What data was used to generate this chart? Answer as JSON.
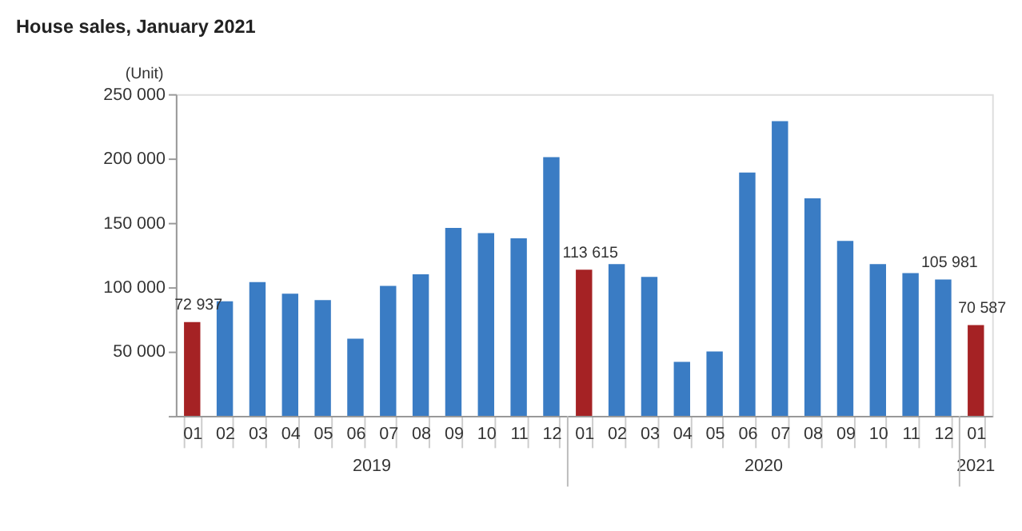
{
  "chart_data": {
    "type": "bar",
    "title": "House sales, January 2021",
    "ylabel": "(Unit)",
    "categories": [
      "01",
      "02",
      "03",
      "04",
      "05",
      "06",
      "07",
      "08",
      "09",
      "10",
      "11",
      "12",
      "01",
      "02",
      "03",
      "04",
      "05",
      "06",
      "07",
      "08",
      "09",
      "10",
      "11",
      "12",
      "01"
    ],
    "values": [
      72937,
      89000,
      104000,
      95000,
      90000,
      60000,
      101000,
      110000,
      146000,
      142000,
      138000,
      201000,
      113615,
      118000,
      108000,
      42000,
      50000,
      189000,
      229000,
      169000,
      136000,
      118000,
      111000,
      105981,
      70587
    ],
    "colors": [
      "#a52224",
      "#3a7cc4",
      "#3a7cc4",
      "#3a7cc4",
      "#3a7cc4",
      "#3a7cc4",
      "#3a7cc4",
      "#3a7cc4",
      "#3a7cc4",
      "#3a7cc4",
      "#3a7cc4",
      "#3a7cc4",
      "#a52224",
      "#3a7cc4",
      "#3a7cc4",
      "#3a7cc4",
      "#3a7cc4",
      "#3a7cc4",
      "#3a7cc4",
      "#3a7cc4",
      "#3a7cc4",
      "#3a7cc4",
      "#3a7cc4",
      "#3a7cc4",
      "#a52224"
    ],
    "value_labels": [
      "72 937",
      null,
      null,
      null,
      null,
      null,
      null,
      null,
      null,
      null,
      null,
      null,
      "113 615",
      null,
      null,
      null,
      null,
      null,
      null,
      null,
      null,
      null,
      null,
      "105 981",
      "70 587"
    ],
    "ylim": [
      0,
      250000
    ],
    "yticks": [
      {
        "value": 0,
        "label": null
      },
      {
        "value": 50000,
        "label": "50 000"
      },
      {
        "value": 100000,
        "label": "100 000"
      },
      {
        "value": 150000,
        "label": "150 000"
      },
      {
        "value": 200000,
        "label": "200 000"
      },
      {
        "value": 250000,
        "label": "250 000"
      }
    ],
    "annotations": [
      "2019",
      "2020",
      "2021"
    ],
    "grid": false
  }
}
